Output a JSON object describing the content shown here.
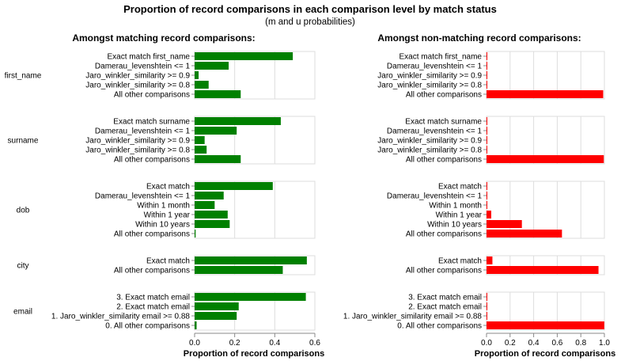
{
  "chart_data": {
    "type": "bar",
    "title": "Proportion of record comparisons in each comparison level by match status",
    "subtitle": "(m and u probabilities)",
    "xlabel": "Proportion of record comparisons",
    "colors": {
      "match": "#008000",
      "non_match": "#ff0000"
    },
    "grid": true,
    "panels": [
      {
        "title": "Amongst matching record comparisons:",
        "color": "#008000",
        "xlim": [
          0,
          0.6
        ],
        "ticks": [
          0,
          0.2,
          0.4,
          0.6
        ],
        "tick_labels": [
          "0.0",
          "0.2",
          "0.4",
          "0.6"
        ]
      },
      {
        "title": "Amongst non-matching record comparisons:",
        "color": "#ff0000",
        "xlim": [
          0,
          1.0
        ],
        "ticks": [
          0,
          0.2,
          0.4,
          0.6,
          0.8,
          1.0
        ],
        "tick_labels": [
          "0.0",
          "0.2",
          "0.4",
          "0.6",
          "0.8",
          "1.0"
        ]
      }
    ],
    "groups": [
      {
        "name": "first_name",
        "levels": [
          "Exact match first_name",
          "Damerau_levenshtein <= 1",
          "Jaro_winkler_similarity >= 0.9",
          "Jaro_winkler_similarity >= 0.8",
          "All other comparisons"
        ],
        "m": [
          0.49,
          0.17,
          0.02,
          0.07,
          0.23
        ],
        "u": [
          0.001,
          0.001,
          0.001,
          0.001,
          0.99
        ]
      },
      {
        "name": "surname",
        "levels": [
          "Exact match surname",
          "Damerau_levenshtein <= 1",
          "Jaro_winkler_similarity >= 0.9",
          "Jaro_winkler_similarity >= 0.8",
          "All other comparisons"
        ],
        "m": [
          0.43,
          0.21,
          0.05,
          0.06,
          0.23
        ],
        "u": [
          0.001,
          0.001,
          0.001,
          0.001,
          0.995
        ]
      },
      {
        "name": "dob",
        "levels": [
          "Exact match",
          "Damerau_levenshtein <= 1",
          "Within 1 month",
          "Within 1 year",
          "Within 10 years",
          "All other comparisons"
        ],
        "m": [
          0.39,
          0.145,
          0.1,
          0.165,
          0.175,
          0.005
        ],
        "u": [
          0.002,
          0.002,
          0.003,
          0.04,
          0.3,
          0.64
        ]
      },
      {
        "name": "city",
        "levels": [
          "Exact match",
          "All other comparisons"
        ],
        "m": [
          0.56,
          0.44
        ],
        "u": [
          0.05,
          0.95
        ]
      },
      {
        "name": "email",
        "levels": [
          "3. Exact match email",
          "2. Exact match email",
          "1. Jaro_winkler_similarity email >= 0.88",
          "0. All other comparisons"
        ],
        "m": [
          0.555,
          0.22,
          0.21,
          0.01
        ],
        "u": [
          0.001,
          0.001,
          0.001,
          0.999
        ]
      }
    ]
  }
}
